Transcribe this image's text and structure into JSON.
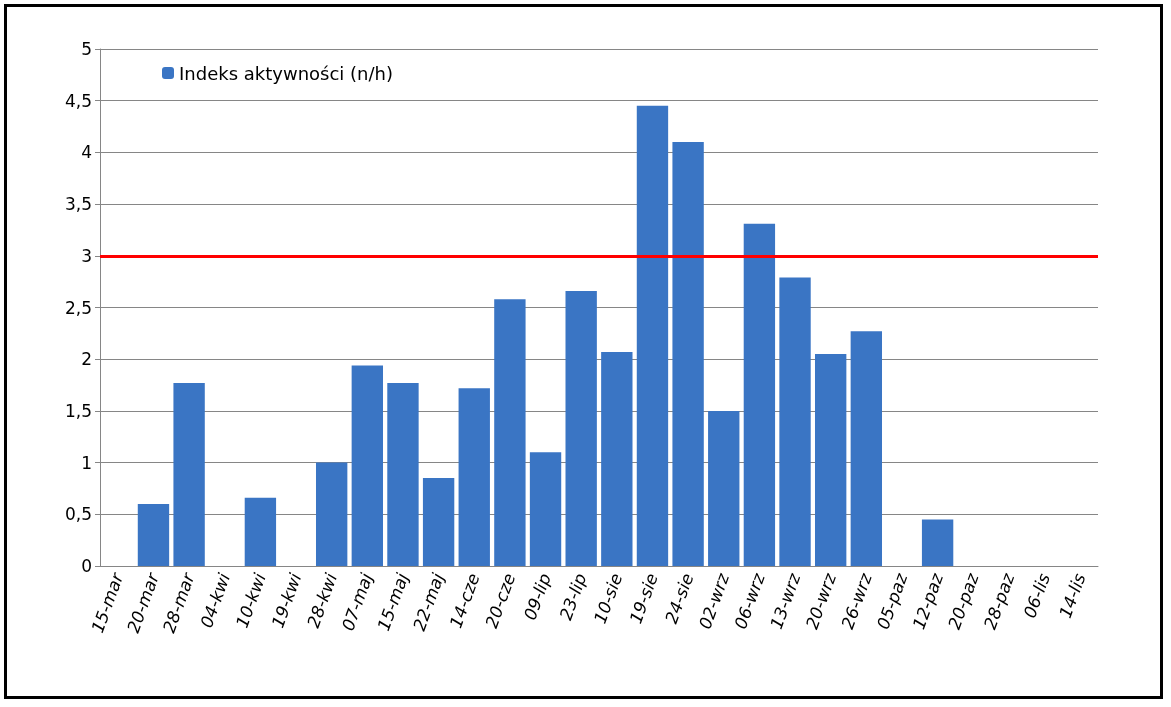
{
  "chart_data": {
    "type": "bar",
    "categories": [
      "15-mar",
      "20-mar",
      "28-mar",
      "04-kwi",
      "10-kwi",
      "19-kwi",
      "28-kwi",
      "07-maj",
      "15-maj",
      "22-maj",
      "14-cze",
      "20-cze",
      "09-lip",
      "23-lip",
      "10-sie",
      "19-sie",
      "24-sie",
      "02-wrz",
      "06-wrz",
      "13-wrz",
      "20-wrz",
      "26-wrz",
      "05-paz",
      "12-paz",
      "20-paz",
      "28-paz",
      "06-lis",
      "14-lis"
    ],
    "series": [
      {
        "name": "Indeks aktywności (n/h)",
        "color": "#3a75c4",
        "values": [
          null,
          0.6,
          1.77,
          null,
          0.66,
          null,
          1.0,
          1.94,
          1.77,
          0.85,
          1.72,
          2.58,
          1.1,
          2.66,
          2.07,
          4.45,
          4.1,
          1.5,
          3.31,
          2.79,
          2.05,
          2.27,
          null,
          0.45,
          null,
          null,
          null,
          null
        ]
      }
    ],
    "ylim": [
      0,
      5
    ],
    "yticks": [
      0,
      {
        "value": 0.5,
        "label": "0,5"
      },
      1,
      {
        "value": 1.5,
        "label": "1,5"
      },
      2,
      {
        "value": 2.5,
        "label": "2,5"
      },
      3,
      {
        "value": 3.5,
        "label": "3,5"
      },
      4,
      {
        "value": 4.5,
        "label": "4,5"
      },
      5
    ],
    "grid": "y",
    "legend": "top left",
    "ref_lines": [
      {
        "axis": "y",
        "value": 3,
        "color": "#ff0000",
        "line_style": "solid"
      }
    ]
  }
}
